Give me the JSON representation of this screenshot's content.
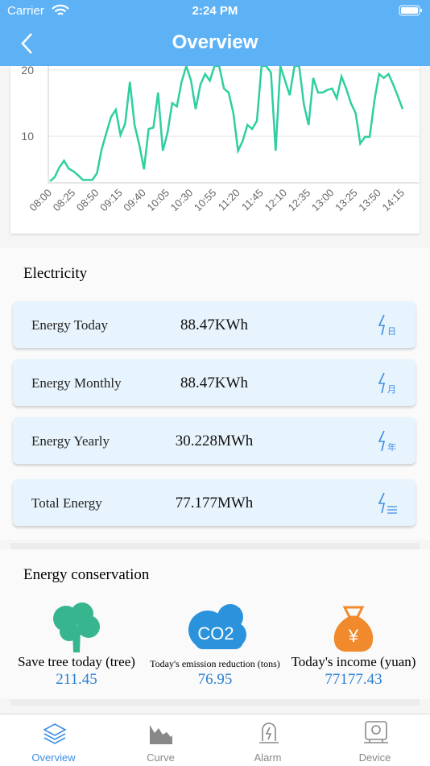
{
  "status_bar": {
    "carrier": "Carrier",
    "time": "2:24 PM"
  },
  "nav": {
    "title": "Overview"
  },
  "chart_data": {
    "type": "line",
    "x": [
      "08:00",
      null,
      null,
      null,
      null,
      "08:25",
      null,
      null,
      null,
      null,
      "08:50",
      null,
      null,
      null,
      null,
      "09:15",
      null,
      null,
      null,
      null,
      "09:40",
      null,
      null,
      null,
      null,
      "10:05",
      null,
      null,
      null,
      null,
      "10:30",
      null,
      null,
      null,
      null,
      "10:55",
      null,
      null,
      null,
      null,
      "11:20",
      null,
      null,
      null,
      null,
      "11:45",
      null,
      null,
      null,
      null,
      "12:10",
      null,
      null,
      null,
      null,
      "12:35",
      null,
      null,
      null,
      null,
      "13:00",
      null,
      null,
      null,
      null,
      "13:25",
      null,
      null,
      null,
      null,
      "13:50",
      null,
      null,
      null,
      null,
      "14:15"
    ],
    "series": [
      {
        "color": "#2ecfa0",
        "values": [
          3.2,
          3.8,
          5.3,
          6.3,
          5.1,
          4.7,
          4.1,
          3.4,
          3.4,
          3.4,
          4.4,
          8.0,
          10.5,
          12.9,
          14,
          10.2,
          11.9,
          18.2,
          11.7,
          8.7,
          5,
          11.1,
          11.3,
          16.6,
          7.8,
          10.5,
          15,
          14.5,
          18.2,
          20.6,
          18.4,
          14.1,
          17.8,
          19.4,
          18.4,
          20.6,
          20.6,
          17.2,
          16.6,
          13.5,
          7.8,
          9.3,
          11.7,
          11.1,
          12.3,
          20.6,
          20.6,
          19.6,
          7.8,
          20.6,
          18.4,
          16.2,
          20.6,
          20.6,
          14.8,
          11.7,
          18.8,
          16.6,
          16.6,
          17,
          17.2,
          15.7,
          19,
          17.2,
          15,
          13.5,
          8.9,
          9.9,
          9.9,
          15.4,
          19.4,
          18.8,
          19.4,
          17.8,
          16,
          14.1
        ]
      }
    ],
    "ylim": [
      3.2,
      20.6
    ],
    "yticks": [
      10,
      20
    ],
    "grid": true
  },
  "electricity": {
    "title": "Electricity",
    "rows": [
      {
        "label": "Energy Today",
        "value": "88.47KWh",
        "icon_text": "日"
      },
      {
        "label": "Energy Monthly",
        "value": "88.47KWh",
        "icon_text": "月"
      },
      {
        "label": "Energy Yearly",
        "value": "30.228MWh",
        "icon_text": "年"
      },
      {
        "label": "Total Energy",
        "value": "77.177MWh"
      }
    ]
  },
  "conservation": {
    "title": "Energy conservation",
    "items": [
      {
        "label": "Save tree today (tree)",
        "value": 211.45
      },
      {
        "label": "Today's emission reduction (tons)",
        "value": 76.95,
        "icon_text": "CO2"
      },
      {
        "label": "Today's income (yuan)",
        "value": 77177.43,
        "icon_text": "¥"
      }
    ]
  },
  "tabs": [
    "Overview",
    "Curve",
    "Alarm",
    "Device"
  ]
}
